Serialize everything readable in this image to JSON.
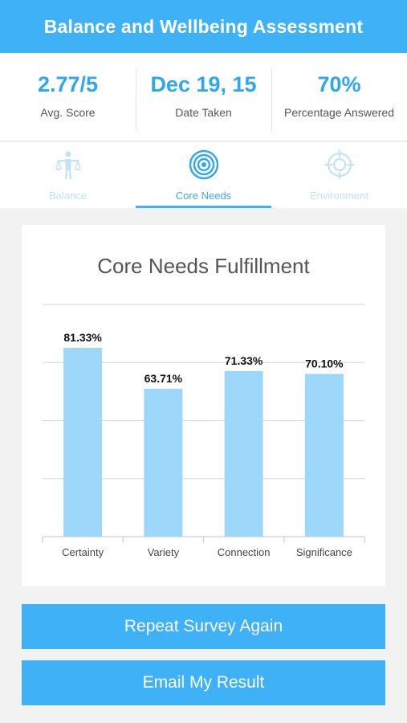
{
  "header": {
    "title": "Balance and Wellbeing Assessment"
  },
  "stats": [
    {
      "value": "2.77/5",
      "label": "Avg. Score"
    },
    {
      "value": "Dec 19, 15",
      "label": "Date Taken"
    },
    {
      "value": "70%",
      "label": "Percentage Answered"
    }
  ],
  "tabs": [
    {
      "label": "Balance",
      "icon": "balance-person-icon",
      "active": false
    },
    {
      "label": "Core Needs",
      "icon": "concentric-circles-icon",
      "active": true
    },
    {
      "label": "Environment",
      "icon": "crosshair-target-icon",
      "active": false
    }
  ],
  "chart_data": {
    "type": "bar",
    "title": "Core Needs Fulfillment",
    "categories": [
      "Certainty",
      "Variety",
      "Connection",
      "Significance"
    ],
    "values": [
      81.33,
      63.71,
      71.33,
      70.1
    ],
    "data_labels": [
      "81.33%",
      "63.71%",
      "71.33%",
      "70.10%"
    ],
    "ylim": [
      0,
      100
    ],
    "grid": true,
    "bar_color": "#9dd8fb"
  },
  "buttons": {
    "repeat_label": "Repeat Survey Again",
    "email_label": "Email My Result"
  },
  "colors": {
    "accent": "#3fb2f7",
    "accent_text": "#2ea7f0",
    "inactive_tab": "#bfe3fa"
  }
}
